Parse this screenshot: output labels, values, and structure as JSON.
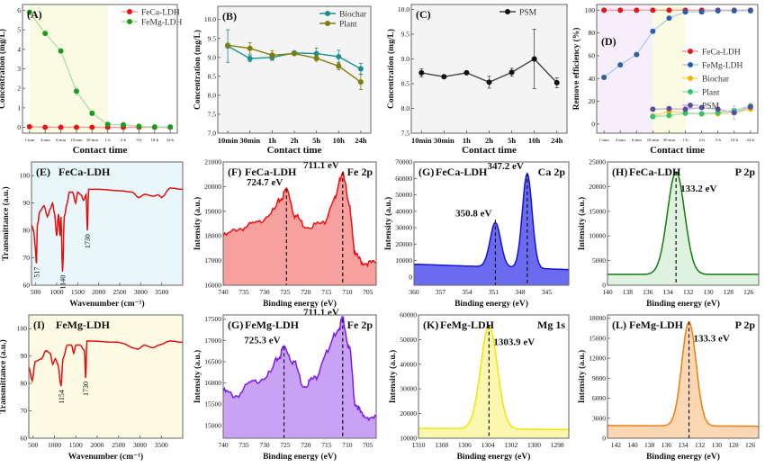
{
  "chart_data": [
    {
      "id": "A",
      "type": "line",
      "label": "(A)",
      "categories": [
        "1-min",
        "3-min",
        "6-min",
        "10-min",
        "30-min",
        "1-h",
        "2-h",
        "5-h",
        "10-h",
        "24-h"
      ],
      "xlabel": "Contact time",
      "ylabel": "Concentration (mg/L)",
      "ylim": [
        -0.3,
        6.3
      ],
      "yticks": [
        0,
        1,
        2,
        3,
        4,
        5,
        6
      ],
      "shade": [
        {
          "from": 0,
          "to": 5,
          "color": "#fbfbe3"
        }
      ],
      "legend": "top-right",
      "series": [
        {
          "name": "FeCa-LDH",
          "color": "#e01818",
          "line": "#f4a0a0",
          "values": [
            0.03,
            0.0,
            0.0,
            0.0,
            0.0,
            0.0,
            0.0,
            0.0,
            0.0,
            0.0
          ]
        },
        {
          "name": "FeMg-LDH",
          "color": "#1f9a1f",
          "line": "#b5dcb5",
          "values": [
            5.9,
            4.82,
            3.92,
            1.85,
            0.72,
            0.15,
            0.13,
            0.05,
            0.02,
            0.02
          ],
          "errors": [
            0,
            0,
            0,
            0.2,
            0.12,
            0.04,
            0.03,
            0,
            0,
            0
          ]
        }
      ]
    },
    {
      "id": "B",
      "type": "line",
      "label": "(B)",
      "categories": [
        "10min",
        "30min",
        "1h",
        "2h",
        "5h",
        "10h",
        "24h"
      ],
      "xlabel": "Contact time",
      "ylabel": "Concentration (mg/L)",
      "ylim": [
        7.0,
        10.35
      ],
      "yticks": [
        7.0,
        7.5,
        8.0,
        8.5,
        9.0,
        9.5,
        10.0
      ],
      "ydec": 1,
      "bg": "#f4f4f4",
      "legend": "top-right",
      "series": [
        {
          "name": "Biochar",
          "color": "#1a8f8f",
          "line": "#1a8f8f",
          "values": [
            9.3,
            8.97,
            9.0,
            9.12,
            9.1,
            9.02,
            8.7
          ],
          "errors": [
            0.43,
            0.08,
            0.08,
            0.03,
            0.15,
            0.17,
            0.14
          ]
        },
        {
          "name": "Plant",
          "color": "#7d7d10",
          "line": "#7d7d10",
          "values": [
            9.32,
            9.24,
            9.06,
            9.1,
            8.98,
            8.77,
            8.35
          ],
          "errors": [
            0.05,
            0.15,
            0.12,
            0.03,
            0.08,
            0.1,
            0.2
          ]
        }
      ]
    },
    {
      "id": "C",
      "type": "line",
      "label": "(C)",
      "categories": [
        "10min",
        "30min",
        "1h",
        "2h",
        "5h",
        "10h",
        "24h"
      ],
      "xlabel": "Contact time",
      "ylabel": "Concentration (mg/L)",
      "ylim": [
        7.5,
        10.1
      ],
      "yticks": [
        7.5,
        8.0,
        8.5,
        9.0,
        9.5,
        10.0
      ],
      "ydec": 1,
      "bg": "#f4f4f4",
      "legend": "top-right",
      "series": [
        {
          "name": "PSM",
          "color": "#111111",
          "line": "#444444",
          "values": [
            8.72,
            8.64,
            8.72,
            8.53,
            8.73,
            9.0,
            8.52
          ],
          "errors": [
            0.08,
            0.03,
            0.03,
            0.12,
            0.08,
            0.6,
            0.1
          ]
        }
      ]
    },
    {
      "id": "D",
      "type": "line",
      "label": "(D)",
      "categories": [
        "1-min",
        "3-min",
        "6-min",
        "10-min",
        "30-min",
        "1-h",
        "2-h",
        "5-h",
        "10-h",
        "24-h"
      ],
      "xlabel": "Contact time",
      "ylabel": "Remove efficiency (%)",
      "ylim": [
        -8,
        105
      ],
      "yticks": [
        0,
        20,
        40,
        60,
        80,
        100
      ],
      "shade": [
        {
          "from": -0.5,
          "to": 3,
          "color": "#f6eefa"
        },
        {
          "from": 3,
          "to": 5,
          "color": "#fbfbe3"
        }
      ],
      "legend": "right",
      "series": [
        {
          "name": "FeCa-LDH",
          "color": "#e01818",
          "line": "#f4a0a0",
          "values": [
            100,
            100,
            100,
            100,
            100,
            100,
            100,
            100,
            100,
            100
          ]
        },
        {
          "name": "FeMg-LDH",
          "color": "#2d5fa6",
          "line": "#b8cbe4",
          "values": [
            41,
            52,
            61,
            81.5,
            93,
            98.5,
            98.5,
            99.5,
            99.5,
            99.5
          ]
        },
        {
          "name": "Biochar",
          "color": "#f2b400",
          "line": "#f7d97a",
          "values": [
            null,
            null,
            null,
            7,
            11,
            10,
            9,
            9,
            10,
            13
          ]
        },
        {
          "name": "Plant",
          "color": "#33c46a",
          "line": "#a5e2bb",
          "values": [
            null,
            null,
            null,
            6.5,
            7.5,
            9.5,
            9,
            10,
            12,
            16
          ]
        },
        {
          "name": "PSM",
          "color": "#5b4c9c",
          "line": "#bdb5da",
          "values": [
            null,
            null,
            null,
            13,
            13.5,
            13,
            14.5,
            13,
            10,
            15
          ],
          "errors": [
            0,
            0,
            0,
            0,
            0,
            0,
            0,
            0,
            6,
            0
          ]
        }
      ]
    },
    {
      "id": "E",
      "type": "spectrum",
      "label": "(E)",
      "sample": "FeCa-LDH",
      "xlabel": "Wavenumber (cm⁻¹)",
      "ylabel": "Transmittance (a.u.)",
      "xlim": [
        400,
        4000
      ],
      "xticks": [
        500,
        1000,
        1500,
        2000,
        2500,
        3000,
        3500
      ],
      "ylim": [
        60,
        105
      ],
      "yticks": [
        60,
        70,
        80,
        90,
        100
      ],
      "bg": "#e9f7fb",
      "color": "#e01010",
      "fill": false,
      "points": [
        [
          400,
          82
        ],
        [
          450,
          80
        ],
        [
          490,
          74
        ],
        [
          517,
          68
        ],
        [
          540,
          82
        ],
        [
          600,
          87
        ],
        [
          700,
          89
        ],
        [
          780,
          85
        ],
        [
          850,
          88
        ],
        [
          900,
          90
        ],
        [
          950,
          86
        ],
        [
          1000,
          78
        ],
        [
          1040,
          86
        ],
        [
          1080,
          78
        ],
        [
          1100,
          85
        ],
        [
          1140,
          65
        ],
        [
          1180,
          85
        ],
        [
          1250,
          90
        ],
        [
          1300,
          94
        ],
        [
          1380,
          94
        ],
        [
          1450,
          90
        ],
        [
          1500,
          94
        ],
        [
          1580,
          93
        ],
        [
          1640,
          91
        ],
        [
          1700,
          93
        ],
        [
          1730,
          80
        ],
        [
          1760,
          95
        ],
        [
          2000,
          95
        ],
        [
          2500,
          94.5
        ],
        [
          2800,
          94
        ],
        [
          2950,
          92
        ],
        [
          3100,
          93.2
        ],
        [
          3300,
          92.5
        ],
        [
          3420,
          93
        ],
        [
          3500,
          92
        ],
        [
          3700,
          95.5
        ],
        [
          4000,
          95
        ]
      ],
      "bands": [
        {
          "x": 517,
          "y": 68,
          "text": "517"
        },
        {
          "x": 1140,
          "y": 65,
          "text": "1140"
        },
        {
          "x": 1730,
          "y": 80,
          "text": "1730"
        }
      ]
    },
    {
      "id": "F",
      "type": "spectrum",
      "label": "(F)",
      "sample": "FeCa-LDH",
      "orbital": "Fe 2p",
      "xlabel": "Binding energy (eV)",
      "ylabel": "Intensity (a.u.)",
      "xlim": [
        740,
        703
      ],
      "xticks": [
        740,
        735,
        730,
        725,
        720,
        715,
        710,
        705
      ],
      "ylim": [
        16000,
        21000
      ],
      "yticks": [
        16000,
        17000,
        18000,
        19000,
        20000,
        21000
      ],
      "color": "#ee1111",
      "fillColor": "#f7a0a0",
      "fill": true,
      "noise": 120,
      "points": [
        [
          740,
          18000
        ],
        [
          736,
          18300
        ],
        [
          732,
          18500
        ],
        [
          728,
          19000
        ],
        [
          726,
          19500
        ],
        [
          724.7,
          19900
        ],
        [
          722.5,
          18800
        ],
        [
          720,
          18400
        ],
        [
          716,
          18500
        ],
        [
          713,
          19500
        ],
        [
          711.1,
          20600
        ],
        [
          709.5,
          19200
        ],
        [
          708,
          17200
        ],
        [
          706,
          16900
        ],
        [
          703,
          16900
        ]
      ],
      "peaks": [
        {
          "x": 724.7,
          "y": 19900,
          "text": "724.7 eV"
        },
        {
          "x": 711.1,
          "y": 20600,
          "text": "711.1 eV"
        }
      ]
    },
    {
      "id": "G",
      "type": "spectrum",
      "label": "(G)",
      "sample": "FeCa-LDH",
      "orbital": "Ca 2p",
      "xlabel": "Binding energy (eV)",
      "ylabel": "Intensity (a.u.)",
      "xlim": [
        360,
        342.5
      ],
      "xticks": [
        360,
        357,
        354,
        351,
        348,
        345
      ],
      "ylim": [
        -5000,
        70000
      ],
      "yticks": [
        0,
        10000,
        20000,
        30000,
        40000,
        50000,
        60000,
        70000
      ],
      "color": "#1414d8",
      "fillColor": "#6b6bf0",
      "fill": true,
      "baseline": [
        7800,
        4500
      ],
      "gauss": [
        {
          "c": 350.8,
          "h": 27000,
          "s": 0.6
        },
        {
          "c": 347.2,
          "h": 57500,
          "s": 0.55
        }
      ],
      "peaks": [
        {
          "x": 350.8,
          "y": 34800,
          "text": "350.8 eV"
        },
        {
          "x": 347.2,
          "y": 63500,
          "text": "347.2 eV"
        }
      ]
    },
    {
      "id": "H",
      "type": "spectrum",
      "label": "(H)",
      "sample": "FeCa-LDH",
      "orbital": "P 2p",
      "xlabel": "Binding energy (eV)",
      "ylabel": "Intensity (a.u.)",
      "xlim": [
        140,
        125
      ],
      "xticks": [
        140,
        138,
        136,
        134,
        132,
        130,
        128,
        126
      ],
      "ylim": [
        0,
        25000
      ],
      "yticks": [
        0,
        5000,
        10000,
        15000,
        20000,
        25000
      ],
      "color": "#137a13",
      "fillColor": "#dff2df",
      "fill": true,
      "baseline": [
        2200,
        2200
      ],
      "gauss": [
        {
          "c": 133.2,
          "h": 20800,
          "s": 0.85
        }
      ],
      "peaks": [
        {
          "x": 133.2,
          "y": 23000,
          "text": "133.2 eV"
        }
      ]
    },
    {
      "id": "I",
      "type": "spectrum",
      "label": "(I)",
      "sample": "FeMg-LDH",
      "xlabel": "Wavenumber (cm⁻¹)",
      "ylabel": "Transmittance (a.u.)",
      "xlim": [
        400,
        4000
      ],
      "xticks": [
        500,
        1000,
        1500,
        2000,
        2500,
        3000,
        3500
      ],
      "ylim": [
        60,
        105
      ],
      "yticks": [
        60,
        70,
        80,
        90,
        100
      ],
      "bg": "#fdfbe4",
      "color": "#e01010",
      "fill": false,
      "points": [
        [
          400,
          86
        ],
        [
          480,
          81
        ],
        [
          550,
          88
        ],
        [
          700,
          89
        ],
        [
          800,
          92
        ],
        [
          900,
          91
        ],
        [
          960,
          87
        ],
        [
          1020,
          89
        ],
        [
          1080,
          87
        ],
        [
          1154,
          79
        ],
        [
          1200,
          89
        ],
        [
          1300,
          94
        ],
        [
          1400,
          94
        ],
        [
          1450,
          91
        ],
        [
          1500,
          94
        ],
        [
          1600,
          94
        ],
        [
          1700,
          92
        ],
        [
          1730,
          82
        ],
        [
          1760,
          95.5
        ],
        [
          2500,
          95
        ],
        [
          2950,
          92.5
        ],
        [
          3100,
          94
        ],
        [
          3300,
          93
        ],
        [
          3450,
          94
        ],
        [
          3700,
          95.5
        ],
        [
          4000,
          95
        ]
      ],
      "bands": [
        {
          "x": 1154,
          "y": 79,
          "text": "1154"
        },
        {
          "x": 1730,
          "y": 82,
          "text": "1730"
        }
      ]
    },
    {
      "id": "G2",
      "type": "spectrum",
      "label": "(G)",
      "sample": "FeMg-LDH",
      "orbital": "Fe 2p",
      "xlabel": "Binding energy (eV)",
      "ylabel": "Intensity (a.u.)",
      "xlim": [
        740,
        703
      ],
      "xticks": [
        740,
        735,
        730,
        725,
        720,
        715,
        710,
        705
      ],
      "ylim": [
        14700,
        17600
      ],
      "yticks": [
        15000,
        15500,
        16000,
        16500,
        17000,
        17500
      ],
      "color": "#7a1ee6",
      "fillColor": "#c9a2f5",
      "fill": true,
      "noise": 80,
      "points": [
        [
          740,
          15800
        ],
        [
          737,
          15700
        ],
        [
          733,
          16000
        ],
        [
          729,
          16200
        ],
        [
          726.5,
          16600
        ],
        [
          725.3,
          16850
        ],
        [
          723,
          16500
        ],
        [
          720.5,
          15950
        ],
        [
          718,
          16100
        ],
        [
          715,
          16700
        ],
        [
          712,
          17300
        ],
        [
          711.1,
          17500
        ],
        [
          709.5,
          16800
        ],
        [
          708,
          15500
        ],
        [
          706,
          15200
        ],
        [
          703,
          15200
        ]
      ],
      "peaks": [
        {
          "x": 725.3,
          "y": 16850,
          "text": "725.3 eV"
        },
        {
          "x": 711.1,
          "y": 17500,
          "text": "711.1 eV"
        }
      ]
    },
    {
      "id": "K",
      "type": "spectrum",
      "label": "(K)",
      "sample": "FeMg-LDH",
      "orbital": "Mg 1s",
      "xlabel": "Binding energy (eV)",
      "ylabel": "Intensity (a.u.)",
      "xlim": [
        1310,
        1297
      ],
      "xticks": [
        1310,
        1308,
        1306,
        1304,
        1302,
        1300,
        1298
      ],
      "ylim": [
        10000,
        60000
      ],
      "yticks": [
        10000,
        20000,
        30000,
        40000,
        50000,
        60000
      ],
      "color": "#f2e600",
      "fillColor": "#fbf6b0",
      "fill": true,
      "baseline": [
        14000,
        13500
      ],
      "gauss": [
        {
          "c": 1303.9,
          "h": 41800,
          "s": 0.72
        }
      ],
      "peaks": [
        {
          "x": 1303.9,
          "y": 55800,
          "text": "1303.9 eV"
        }
      ]
    },
    {
      "id": "L",
      "type": "spectrum",
      "label": "(L)",
      "sample": "FeMg-LDH",
      "orbital": "P 2p",
      "xlabel": "Binding energy (eV)",
      "ylabel": "Intensity (a.u.)",
      "xlim": [
        143,
        125
      ],
      "xticks": [
        142,
        140,
        138,
        136,
        134,
        132,
        130,
        128,
        126
      ],
      "ylim": [
        0,
        18500
      ],
      "yticks": [
        0,
        3000,
        6000,
        9000,
        12000,
        15000,
        18000
      ],
      "color": "#f07d10",
      "fillColor": "#fbd7b4",
      "fill": true,
      "baseline": [
        1900,
        1800
      ],
      "gauss": [
        {
          "c": 133.3,
          "h": 15600,
          "s": 0.85
        }
      ],
      "peaks": [
        {
          "x": 133.3,
          "y": 17500,
          "text": "133.3 eV"
        }
      ]
    }
  ]
}
